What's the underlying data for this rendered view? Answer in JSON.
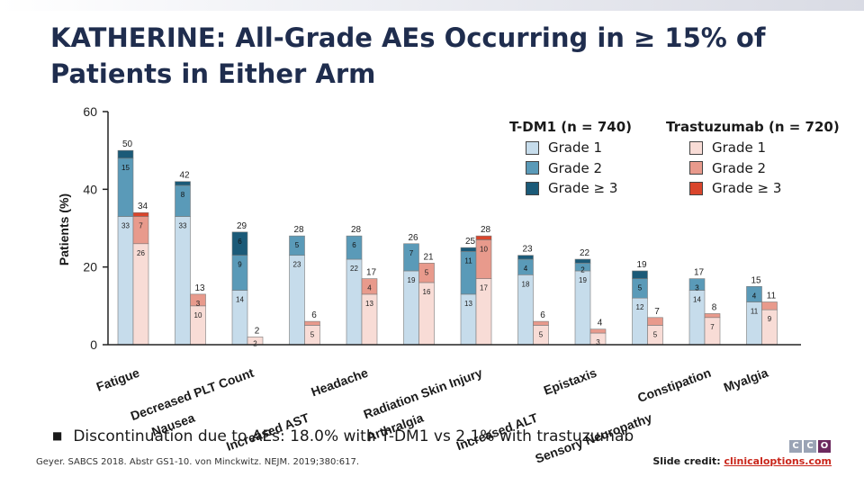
{
  "slide": {
    "title": "KATHERINE: All-Grade AEs Occurring in ≥ 15% of Patients in Either Arm",
    "bullet": "Discontinuation due to AEs: 18.0% with T-DM1 vs 2.1% with trastuzumab",
    "citation": "Geyer. SABCS 2018. Abstr GS1-10. von Minckwitz. NEJM. 2019;380:617.",
    "credit_label": "Slide credit:",
    "credit_link": "clinicaloptions.com",
    "logo": [
      "C",
      "C",
      "O"
    ],
    "bullet_icon": "square-bullet"
  },
  "legend": {
    "tdm1": {
      "title": "T-DM1 (n = 740)",
      "items": [
        {
          "label": "Grade 1",
          "color": "#c6dceb"
        },
        {
          "label": "Grade 2",
          "color": "#5a9ab8"
        },
        {
          "label": "Grade ≥ 3",
          "color": "#1b5a78"
        }
      ]
    },
    "trast": {
      "title": "Trastuzumab (n = 720)",
      "items": [
        {
          "label": "Grade 1",
          "color": "#f8dcd6"
        },
        {
          "label": "Grade 2",
          "color": "#e89a8c"
        },
        {
          "label": "Grade ≥ 3",
          "color": "#d9452c"
        }
      ]
    }
  },
  "chart_data": {
    "type": "bar",
    "stacked": true,
    "ylabel": "Patients (%)",
    "ylim": [
      0,
      60
    ],
    "yticks": [
      0,
      20,
      40,
      60
    ],
    "categories": [
      "Fatigue",
      "Nausea",
      "Decreased PLT Count",
      "Increased AST",
      "Headache",
      "Arthralgia",
      "Radiation Skin Injury",
      "Increased ALT",
      "Epistaxis",
      "Sensory Neuropathy",
      "Constipation",
      "Myalgia"
    ],
    "tdm1": [
      {
        "total": 50,
        "g1": 33,
        "g2": 15,
        "g3": 2,
        "labels": {
          "total": "50",
          "g1": "33",
          "g2": "15"
        }
      },
      {
        "total": 42,
        "g1": 33,
        "g2": 8,
        "g3": 1,
        "labels": {
          "total": "42",
          "g1": "33",
          "g2": "8"
        }
      },
      {
        "total": 29,
        "g1": 14,
        "g2": 9,
        "g3": 6,
        "labels": {
          "total": "29",
          "g1": "14",
          "g2": "9",
          "g3": "6"
        }
      },
      {
        "total": 28,
        "g1": 23,
        "g2": 5,
        "g3": 0,
        "labels": {
          "total": "28",
          "g1": "23",
          "g2": "5"
        }
      },
      {
        "total": 28,
        "g1": 22,
        "g2": 6,
        "g3": 0,
        "labels": {
          "total": "28",
          "g1": "22",
          "g2": "6"
        }
      },
      {
        "total": 26,
        "g1": 19,
        "g2": 7,
        "g3": 0,
        "labels": {
          "total": "26",
          "g1": "19",
          "g2": "7"
        }
      },
      {
        "total": 25,
        "g1": 13,
        "g2": 11,
        "g3": 1,
        "labels": {
          "total": "25",
          "g1": "13",
          "g2": "11"
        }
      },
      {
        "total": 23,
        "g1": 18,
        "g2": 4,
        "g3": 1,
        "labels": {
          "total": "23",
          "g1": "18",
          "g2": "4"
        }
      },
      {
        "total": 22,
        "g1": 19,
        "g2": 2,
        "g3": 1,
        "labels": {
          "total": "22",
          "g1": "19",
          "g2": "2"
        }
      },
      {
        "total": 19,
        "g1": 12,
        "g2": 5,
        "g3": 2,
        "labels": {
          "total": "19",
          "g1": "12",
          "g2": "5"
        }
      },
      {
        "total": 17,
        "g1": 14,
        "g2": 3,
        "g3": 0,
        "labels": {
          "total": "17",
          "g1": "14",
          "g2": "3"
        }
      },
      {
        "total": 15,
        "g1": 11,
        "g2": 4,
        "g3": 0,
        "labels": {
          "total": "15",
          "g1": "11",
          "g2": "4"
        }
      }
    ],
    "trastuzumab": [
      {
        "total": 34,
        "g1": 26,
        "g2": 7,
        "g3": 1,
        "labels": {
          "total": "34",
          "g1": "26",
          "g2": "7"
        }
      },
      {
        "total": 13,
        "g1": 10,
        "g2": 3,
        "g3": 0,
        "labels": {
          "total": "13",
          "g1": "10",
          "g2": "3"
        }
      },
      {
        "total": 2,
        "g1": 2,
        "g2": 0,
        "g3": 0,
        "labels": {
          "total": "2",
          "g1": "2"
        }
      },
      {
        "total": 6,
        "g1": 5,
        "g2": 1,
        "g3": 0,
        "labels": {
          "total": "6",
          "g1": "5"
        }
      },
      {
        "total": 17,
        "g1": 13,
        "g2": 4,
        "g3": 0,
        "labels": {
          "total": "17",
          "g1": "13",
          "g2": "4"
        }
      },
      {
        "total": 21,
        "g1": 16,
        "g2": 5,
        "g3": 0,
        "labels": {
          "total": "21",
          "g1": "16",
          "g2": "5"
        }
      },
      {
        "total": 28,
        "g1": 17,
        "g2": 10,
        "g3": 1,
        "labels": {
          "total": "28",
          "g1": "17",
          "g2": "10"
        }
      },
      {
        "total": 6,
        "g1": 5,
        "g2": 1,
        "g3": 0,
        "labels": {
          "total": "6",
          "g1": "5"
        }
      },
      {
        "total": 4,
        "g1": 3,
        "g2": 1,
        "g3": 0,
        "labels": {
          "total": "4",
          "g1": "3"
        }
      },
      {
        "total": 7,
        "g1": 5,
        "g2": 2,
        "g3": 0,
        "labels": {
          "total": "7",
          "g1": "5"
        }
      },
      {
        "total": 8,
        "g1": 7,
        "g2": 1,
        "g3": 0,
        "labels": {
          "total": "8",
          "g1": "7"
        }
      },
      {
        "total": 11,
        "g1": 9,
        "g2": 2,
        "g3": 0,
        "labels": {
          "total": "11",
          "g1": "9"
        }
      }
    ]
  }
}
